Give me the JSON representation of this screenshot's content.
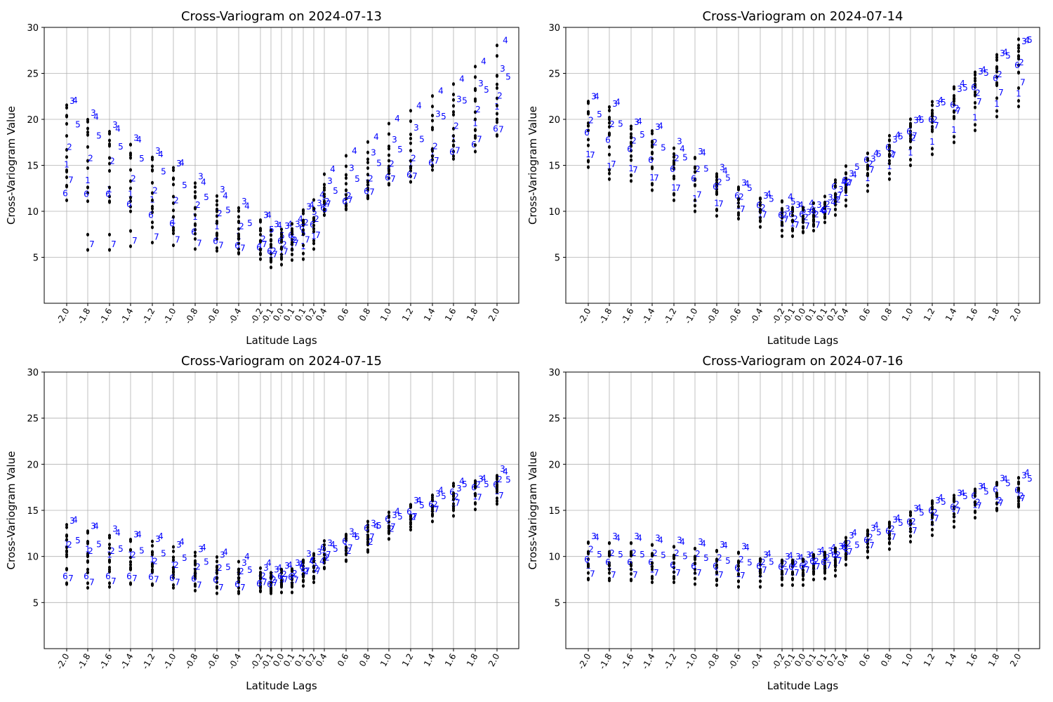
{
  "colors": {
    "points": "#000000",
    "labels": "#0000ff",
    "grid": "#b0b0b0",
    "axis": "#000000"
  },
  "label_ids": [
    "1",
    "2",
    "3",
    "4",
    "5",
    "6",
    "7"
  ],
  "chart_data": [
    {
      "type": "scatter",
      "title": "Cross-Variogram on 2024-07-13",
      "xlabel": "Latitude Lags",
      "ylabel": "Cross-Variogram Value",
      "ylim": [
        0,
        30
      ],
      "yticks": [
        5,
        10,
        15,
        20,
        25,
        30
      ],
      "grid": true,
      "lag_ticks": [
        "-2.0",
        "-1.8",
        "-1.6",
        "-1.4",
        "-1.2",
        "-1.0",
        "-0.8",
        "-0.6",
        "-0.4",
        "-0.2",
        "-0.1",
        "0.0",
        "0.1",
        "0.1",
        "0.2",
        "0.4",
        "0.6",
        "0.8",
        "1.0",
        "1.2",
        "1.4",
        "1.6",
        "1.8",
        "2.0"
      ],
      "series": [
        {
          "name": "1",
          "values": [
            13.7,
            12.0,
            11.0,
            10.5,
            9.9,
            7.6,
            8.0,
            7.0,
            5.9,
            4.8,
            3.9,
            4.2,
            4.7,
            4.8,
            5.9,
            9.6,
            10.2,
            11.7,
            13.0,
            13.8,
            15.0,
            16.5,
            18.2,
            20.0
          ]
        },
        {
          "name": "2",
          "values": [
            15.9,
            14.7,
            14.4,
            12.5,
            11.2,
            10.1,
            9.6,
            8.7,
            7.3,
            5.9,
            4.6,
            5.3,
            5.8,
            7.7,
            8.1,
            10.0,
            10.6,
            12.5,
            14.1,
            14.7,
            16.0,
            18.2,
            20.0,
            21.5
          ]
        },
        {
          "name": "3",
          "values": [
            20.3,
            19.0,
            17.7,
            16.3,
            14.9,
            13.5,
            12.1,
            10.7,
            9.4,
            7.9,
            6.9,
            6.7,
            6.9,
            8.8,
            9.2,
            11.6,
            13.0,
            14.7,
            16.1,
            17.4,
            18.9,
            20.5,
            22.2,
            23.8
          ]
        },
        {
          "name": "4",
          "values": [
            20.4,
            18.6,
            17.3,
            16.1,
            14.5,
            13.6,
            11.5,
            10.0,
            8.9,
            7.9,
            6.8,
            6.9,
            7.5,
            9.0,
            10.1,
            12.9,
            14.9,
            16.4,
            18.4,
            19.8,
            21.4,
            22.7,
            24.6,
            26.9
          ]
        },
        {
          "name": "5",
          "values": [
            18.2,
            17.0,
            15.8,
            14.5,
            13.1,
            11.6,
            10.3,
            8.9,
            7.5,
            6.8,
            6.1,
            5.9,
            6.4,
            8.7,
            9.0,
            11.0,
            12.3,
            14.0,
            15.5,
            16.6,
            19.1,
            20.8,
            22.0,
            23.4
          ]
        },
        {
          "name": "6",
          "values": [
            11.2,
            11.1,
            11.1,
            10.0,
            8.8,
            7.9,
            7.0,
            6.0,
            5.5,
            5.3,
            4.9,
            6.0,
            6.6,
            7.5,
            7.8,
            9.6,
            10.3,
            11.4,
            12.9,
            13.2,
            14.5,
            15.7,
            16.5,
            18.2
          ]
        },
        {
          "name": "7",
          "values": [
            12.8,
            5.8,
            5.8,
            6.2,
            6.6,
            6.3,
            5.9,
            5.7,
            5.4,
            5.8,
            4.7,
            5.0,
            5.9,
            6.3,
            6.8,
            10.2,
            10.6,
            11.5,
            12.9,
            13.2,
            14.9,
            16.0,
            17.2,
            18.3
          ]
        }
      ]
    },
    {
      "type": "scatter",
      "title": "Cross-Variogram on 2024-07-14",
      "xlabel": "Latitude Lags",
      "ylabel": "Cross-Variogram Value",
      "ylim": [
        0,
        30
      ],
      "yticks": [
        5,
        10,
        15,
        20,
        25,
        30
      ],
      "grid": true,
      "lag_ticks": [
        "-2.0",
        "-1.8",
        "-1.6",
        "-1.4",
        "-1.2",
        "-1.0",
        "-0.8",
        "-0.6",
        "-0.4",
        "-0.2",
        "-0.1",
        "0.0",
        "0.1",
        "0.1",
        "0.2",
        "0.4",
        "0.6",
        "0.8",
        "1.0",
        "1.2",
        "1.4",
        "1.6",
        "1.8",
        "2.0"
      ],
      "series": [
        {
          "name": "1",
          "values": [
            14.8,
            13.5,
            13.3,
            12.3,
            11.2,
            10.0,
            9.5,
            9.2,
            8.3,
            7.3,
            7.3,
            7.7,
            8.5,
            8.8,
            9.6,
            10.6,
            12.2,
            13.5,
            15.0,
            16.2,
            17.5,
            18.8,
            20.3,
            21.4
          ]
        },
        {
          "name": "2",
          "values": [
            18.8,
            18.4,
            16.6,
            16.4,
            14.7,
            13.5,
            12.1,
            10.5,
            9.3,
            8.5,
            8.1,
            8.3,
            8.6,
            9.7,
            10.2,
            12.1,
            14.1,
            15.2,
            16.9,
            18.9,
            20.1,
            21.8,
            23.8,
            25.1
          ]
        },
        {
          "name": "3",
          "values": [
            20.8,
            20.0,
            18.0,
            17.5,
            15.9,
            14.8,
            13.1,
            11.4,
            10.0,
            8.6,
            9.0,
            8.2,
            9.0,
            9.8,
            10.7,
            12.4,
            14.0,
            16.1,
            18.2,
            20.0,
            21.6,
            23.5,
            25.5,
            26.8
          ]
        },
        {
          "name": "4",
          "values": [
            20.8,
            20.2,
            18.1,
            17.6,
            15.1,
            14.7,
            12.7,
            11.3,
            10.2,
            9.9,
            9.0,
            9.2,
            8.4,
            9.3,
            11.5,
            12.3,
            14.6,
            16.6,
            18.4,
            20.4,
            22.2,
            23.7,
            25.6,
            26.9
          ]
        },
        {
          "name": "5",
          "values": [
            19.3,
            18.3,
            17.1,
            15.7,
            14.6,
            13.4,
            12.4,
            11.3,
            10.1,
            9.8,
            8.9,
            8.8,
            8.9,
            10.3,
            11.8,
            13.6,
            15.0,
            16.9,
            18.7,
            20.6,
            22.2,
            23.8,
            25.7,
            27.4
          ]
        },
        {
          "name": "6",
          "values": [
            17.8,
            17.0,
            16.0,
            14.8,
            13.8,
            12.8,
            11.9,
            10.9,
            9.9,
            8.8,
            8.9,
            8.9,
            9.4,
            9.3,
            11.9,
            12.6,
            14.8,
            16.2,
            17.9,
            19.2,
            20.8,
            22.7,
            23.7,
            25.1
          ]
        },
        {
          "name": "7",
          "values": [
            15.5,
            14.5,
            13.9,
            13.0,
            11.9,
            11.2,
            10.2,
            9.6,
            9.0,
            8.5,
            7.9,
            7.8,
            7.9,
            9.3,
            11.1,
            12.5,
            13.9,
            15.5,
            17.6,
            18.7,
            20.3,
            21.3,
            22.3,
            23.4
          ]
        }
      ]
    },
    {
      "type": "scatter",
      "title": "Cross-Variogram on 2024-07-15",
      "xlabel": "Latitude Lags",
      "ylabel": "Cross-Variogram Value",
      "ylim": [
        0,
        30
      ],
      "yticks": [
        5,
        10,
        15,
        20,
        25,
        30
      ],
      "grid": true,
      "lag_ticks": [
        "-2.0",
        "-1.8",
        "-1.6",
        "-1.4",
        "-1.2",
        "-1.0",
        "-0.8",
        "-0.6",
        "-0.4",
        "-0.2",
        "-0.1",
        "0.0",
        "0.1",
        "0.1",
        "0.2",
        "0.4",
        "0.6",
        "0.8",
        "1.0",
        "1.2",
        "1.4",
        "1.6",
        "1.8",
        "2.0"
      ],
      "series": [
        {
          "name": "1",
          "values": [
            10.0,
            9.4,
            8.8,
            8.8,
            8.3,
            7.7,
            7.0,
            6.6,
            6.6,
            6.2,
            6.0,
            6.1,
            6.1,
            6.8,
            7.2,
            8.7,
            9.6,
            10.7,
            11.9,
            12.9,
            13.8,
            14.4,
            15.1,
            15.7
          ]
        },
        {
          "name": "2",
          "values": [
            10.2,
            9.5,
            9.5,
            9.1,
            8.4,
            8.0,
            7.8,
            7.7,
            7.3,
            6.8,
            6.4,
            7.0,
            7.1,
            7.3,
            7.6,
            8.8,
            9.5,
            10.5,
            11.9,
            13.2,
            14.6,
            15.4,
            16.7,
            17.3
          ]
        },
        {
          "name": "3",
          "values": [
            12.2,
            11.6,
            11.3,
            10.7,
            10.2,
            9.6,
            9.1,
            8.5,
            7.6,
            7.1,
            6.9,
            7.3,
            7.6,
            8.6,
            8.8,
            9.8,
            11.0,
            11.9,
            12.8,
            14.4,
            15.1,
            15.7,
            16.7,
            17.8
          ]
        },
        {
          "name": "4",
          "values": [
            12.3,
            11.6,
            10.9,
            10.7,
            10.5,
            9.9,
            9.3,
            8.8,
            8.3,
            7.6,
            7.1,
            7.4,
            7.5,
            7.8,
            7.8,
            9.6,
            10.6,
            11.6,
            13.2,
            14.4,
            15.5,
            16.5,
            16.8,
            17.5
          ]
        },
        {
          "name": "5",
          "values": [
            10.5,
            10.1,
            9.6,
            9.4,
            9.1,
            8.6,
            8.2,
            7.6,
            7.3,
            6.7,
            6.3,
            6.9,
            7.1,
            8.0,
            8.8,
            9.6,
            10.9,
            12.1,
            13.1,
            14.3,
            15.3,
            16.6,
            16.6,
            17.1
          ]
        },
        {
          "name": "6",
          "values": [
            7.1,
            7.1,
            7.1,
            7.1,
            7.0,
            6.9,
            6.8,
            6.7,
            6.2,
            6.3,
            6.2,
            7.1,
            7.0,
            8.1,
            8.8,
            10.2,
            10.9,
            12.3,
            13.3,
            14.1,
            14.9,
            16.2,
            16.7,
            17.0
          ]
        },
        {
          "name": "7",
          "values": [
            7.0,
            6.6,
            6.7,
            7.0,
            6.9,
            6.6,
            6.3,
            6.0,
            6.0,
            6.6,
            6.5,
            6.9,
            6.8,
            7.8,
            7.8,
            9.6,
            10.3,
            11.5,
            12.6,
            13.7,
            14.5,
            15.2,
            15.8,
            16.0
          ]
        }
      ]
    },
    {
      "type": "scatter",
      "title": "Cross-Variogram on 2024-07-16",
      "xlabel": "Latitude Lags",
      "ylabel": "Cross-Variogram Value",
      "ylim": [
        0,
        30
      ],
      "yticks": [
        5,
        10,
        15,
        20,
        25,
        30
      ],
      "grid": true,
      "lag_ticks": [
        "-2.0",
        "-1.8",
        "-1.6",
        "-1.4",
        "-1.2",
        "-1.0",
        "-0.8",
        "-0.6",
        "-0.4",
        "-0.2",
        "-0.1",
        "0.0",
        "0.1",
        "0.1",
        "0.2",
        "0.4",
        "0.6",
        "0.8",
        "1.0",
        "1.2",
        "1.4",
        "1.6",
        "1.8",
        "2.0"
      ],
      "series": [
        {
          "name": "1",
          "values": [
            7.6,
            7.6,
            7.5,
            7.2,
            7.2,
            7.0,
            6.9,
            6.7,
            6.7,
            6.9,
            6.9,
            6.9,
            7.5,
            7.6,
            7.9,
            9.1,
            9.9,
            10.8,
            11.6,
            12.3,
            13.2,
            14.2,
            15.1,
            15.4
          ]
        },
        {
          "name": "2",
          "values": [
            9.7,
            9.3,
            9.3,
            9.3,
            9.3,
            9.2,
            8.8,
            8.6,
            8.3,
            8.1,
            8.1,
            8.1,
            8.4,
            8.8,
            9.1,
            10.3,
            11.0,
            11.9,
            12.7,
            13.7,
            14.6,
            14.8,
            15.0,
            15.5
          ]
        },
        {
          "name": "3",
          "values": [
            10.5,
            10.5,
            10.5,
            10.3,
            10.1,
            9.9,
            9.6,
            9.4,
            8.5,
            8.3,
            8.3,
            8.5,
            8.8,
            8.9,
            9.4,
            10.6,
            11.4,
            12.3,
            13.5,
            14.4,
            15.2,
            15.9,
            16.8,
            17.1
          ]
        },
        {
          "name": "4",
          "values": [
            10.4,
            10.3,
            10.3,
            10.1,
            9.9,
            9.7,
            9.5,
            9.3,
            8.6,
            8.4,
            8.2,
            8.5,
            9.0,
            9.3,
            9.6,
            10.9,
            11.7,
            12.5,
            13.6,
            14.7,
            15.2,
            15.9,
            16.7,
            17.4
          ]
        },
        {
          "name": "5",
          "values": [
            9.0,
            9.0,
            9.0,
            8.9,
            8.8,
            8.6,
            8.3,
            8.1,
            8.2,
            8.1,
            8.1,
            8.2,
            8.7,
            9.0,
            9.2,
            10.0,
            11.4,
            12.4,
            13.5,
            14.7,
            15.3,
            15.8,
            16.7,
            17.2
          ]
        },
        {
          "name": "6",
          "values": [
            8.9,
            8.6,
            8.6,
            8.6,
            8.3,
            8.2,
            8.2,
            8.0,
            8.2,
            8.1,
            8.1,
            8.2,
            8.7,
            8.6,
            9.4,
            10.2,
            11.0,
            12.0,
            13.0,
            14.2,
            14.6,
            15.8,
            16.5,
            16.4
          ]
        },
        {
          "name": "7",
          "values": [
            7.5,
            7.4,
            7.4,
            7.6,
            7.6,
            7.6,
            7.4,
            7.3,
            7.9,
            7.7,
            7.6,
            7.9,
            8.3,
            8.4,
            8.9,
            9.9,
            10.6,
            11.5,
            12.2,
            13.5,
            14.3,
            14.9,
            15.2,
            15.7
          ]
        }
      ]
    }
  ]
}
